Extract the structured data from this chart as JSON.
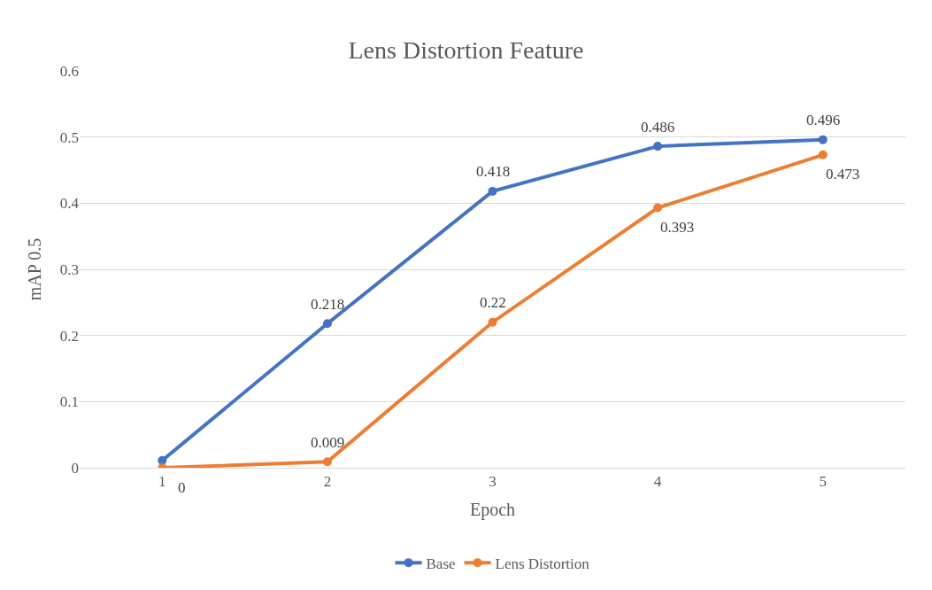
{
  "chart_data": {
    "type": "line",
    "title": "Lens Distortion Feature",
    "xlabel": "Epoch",
    "ylabel": "mAP 0.5",
    "categories": [
      "1",
      "2",
      "3",
      "4",
      "5"
    ],
    "series": [
      {
        "name": "Base",
        "color": "#4472c4",
        "values": [
          0.011,
          0.218,
          0.418,
          0.486,
          0.496
        ],
        "value_labels": [
          null,
          "0.218",
          "0.418",
          "0.486",
          "0.496"
        ]
      },
      {
        "name": "Lens Distortion",
        "color": "#ed7d31",
        "values": [
          0,
          0.009,
          0.22,
          0.393,
          0.473
        ],
        "value_labels": [
          "0",
          "0.009",
          "0.22",
          "0.393",
          "0.473"
        ]
      }
    ],
    "ylim": [
      0,
      0.6
    ],
    "yticks": [
      0,
      0.1,
      0.2,
      0.3,
      0.4,
      0.5,
      0.6
    ],
    "grid": "y",
    "legend": "bottom",
    "marker": "circle",
    "line_style": "solid"
  }
}
